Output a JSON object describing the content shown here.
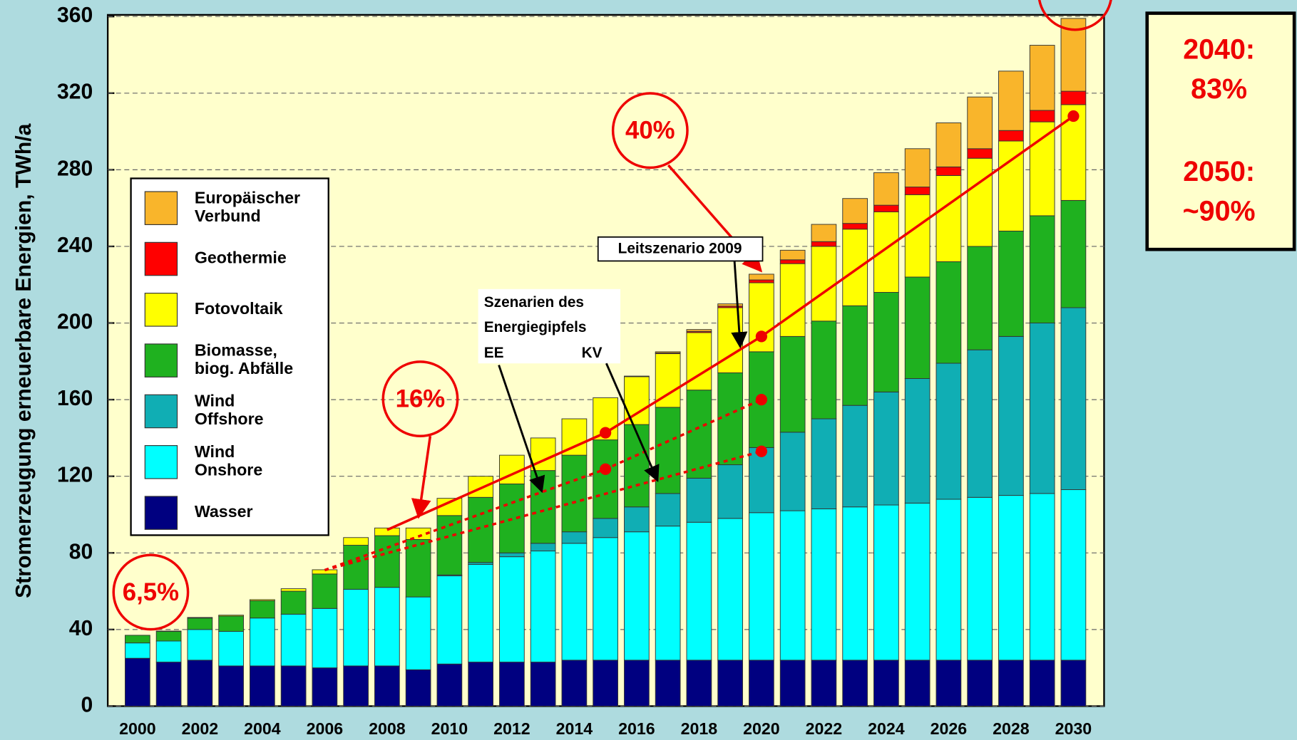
{
  "chart_data": {
    "type": "bar",
    "stacked": true,
    "ylabel": "Stromerzeugung erneuerbare Energien, TWh/a",
    "categories": [
      "2000",
      null,
      "2002",
      null,
      "2004",
      null,
      "2006",
      null,
      "2008",
      null,
      "2010",
      null,
      "2012",
      null,
      "2014",
      null,
      "2016",
      null,
      "2018",
      null,
      "2020",
      null,
      "2022",
      null,
      "2024",
      null,
      "2026",
      null,
      "2028",
      null,
      "2030"
    ],
    "series": [
      {
        "name": "Wasser",
        "color": "#000080",
        "values": [
          25,
          23,
          24,
          21,
          21,
          21,
          20,
          21,
          21,
          19,
          22,
          23,
          23,
          23,
          24,
          24,
          24,
          24,
          24,
          24,
          24,
          24,
          24,
          24,
          24,
          24,
          24,
          24,
          24,
          24,
          24
        ]
      },
      {
        "name": "Wind Onshore",
        "color": "#00ffff",
        "values": [
          8,
          11,
          16,
          18,
          25,
          27,
          31,
          40,
          41,
          38,
          46,
          51,
          55,
          58,
          61,
          64,
          67,
          70,
          72,
          74,
          77,
          78,
          79,
          80,
          81,
          82,
          84,
          85,
          86,
          87,
          89
        ]
      },
      {
        "name": "Wind Offshore",
        "color": "#10aeb4",
        "values": [
          0,
          0,
          0,
          0,
          0,
          0,
          0,
          0,
          0,
          0,
          0.5,
          1,
          2,
          4,
          6,
          10,
          13,
          17,
          23,
          28,
          34,
          41,
          47,
          53,
          59,
          65,
          71,
          77,
          83,
          89,
          95
        ]
      },
      {
        "name": "Biomasse, biog. Abfälle",
        "color": "#1fb11f",
        "values": [
          4,
          5,
          6,
          8,
          9,
          12,
          18,
          23,
          27,
          30,
          31,
          34,
          36,
          38,
          40,
          41,
          43,
          45,
          46,
          48,
          50,
          50,
          51,
          52,
          52,
          53,
          53,
          54,
          55,
          56,
          56
        ]
      },
      {
        "name": "Fotovoltaik",
        "color": "#ffff00",
        "values": [
          0,
          0.2,
          0.3,
          0.5,
          0.6,
          1.3,
          2.2,
          4,
          4,
          6,
          9,
          11,
          15,
          17,
          19,
          22,
          25,
          28,
          30,
          34,
          36,
          38,
          39,
          40,
          42,
          43,
          45,
          46,
          47,
          49,
          50
        ]
      },
      {
        "name": "Geothermie",
        "color": "#ff0000",
        "values": [
          0,
          0,
          0,
          0,
          0,
          0,
          0,
          0,
          0,
          0,
          0,
          0,
          0,
          0,
          0,
          0,
          0.3,
          0.4,
          0.6,
          0.8,
          1.5,
          2,
          2.5,
          3,
          3.5,
          4,
          4.5,
          5,
          5.5,
          6,
          7
        ]
      },
      {
        "name": "Europäischer Verbund",
        "color": "#f9b52b",
        "values": [
          0,
          0,
          0,
          0,
          0,
          0,
          0,
          0,
          0,
          0,
          0,
          0,
          0,
          0,
          0,
          0,
          0,
          0.6,
          1,
          1.2,
          3,
          5,
          9,
          13,
          17,
          20,
          23,
          27,
          31,
          34,
          38
        ]
      }
    ],
    "ylim": [
      0,
      360
    ],
    "yticks": [
      0,
      40,
      80,
      120,
      160,
      200,
      240,
      280,
      320,
      360
    ],
    "grid": true,
    "scenario_lines": [
      {
        "style": "solid",
        "x": [
          2008,
          2015,
          2020,
          2030
        ],
        "values": [
          92,
          142.7,
          193,
          308
        ]
      },
      {
        "style": "dotted",
        "x": [
          2006,
          2015,
          2020
        ],
        "values": [
          71,
          123.7,
          160
        ]
      },
      {
        "style": "dotted",
        "x": [
          2006,
          2020
        ],
        "values": [
          71,
          133
        ]
      }
    ],
    "annotations": {
      "share_2000": "6,5%",
      "share_2010": "16%",
      "share_2020": "40%",
      "leitszenario": "Leitszenario 2009",
      "szenarien": [
        "Szenarien des",
        "Energiegipfels"
      ],
      "ee": "EE",
      "kv": "KV",
      "outlook": [
        "2040:",
        "83%",
        "2050:",
        "~90%"
      ]
    }
  }
}
